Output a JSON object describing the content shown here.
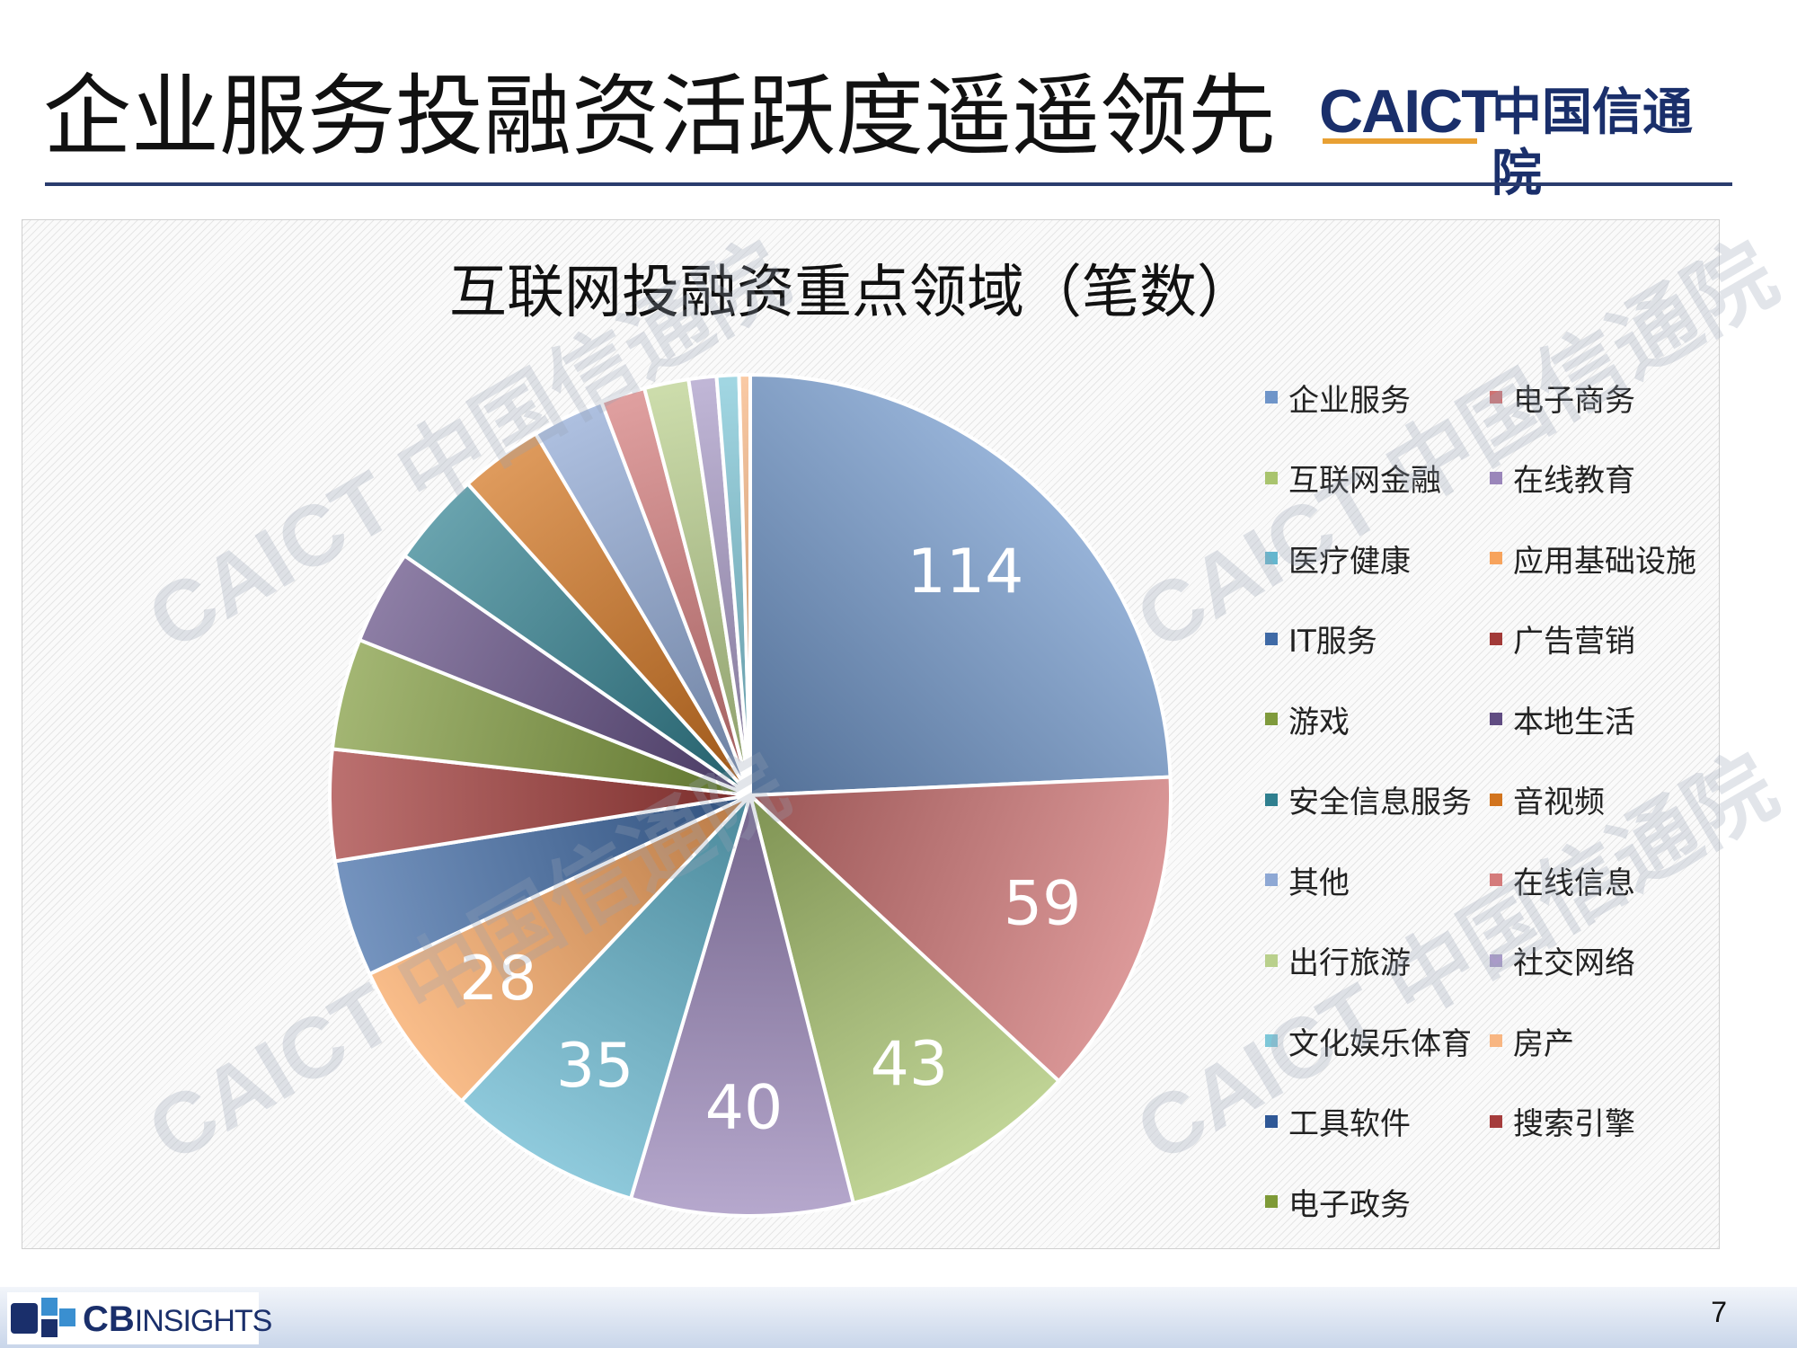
{
  "slide": {
    "title": "企业服务投融资活跃度遥遥领先",
    "logo_caict": "CAICT",
    "logo_cn": "中国信通院",
    "page_number": "7",
    "footer_logo_bold": "CB",
    "footer_logo_light": "INSIGHTS",
    "watermark_caict": "CAICT",
    "watermark_cn": "中国信通院"
  },
  "chart_data": {
    "type": "pie",
    "title": "互联网投融资重点领域（笔数）",
    "legend_position": "right",
    "categories": [
      "企业服务",
      "电子商务",
      "互联网金融",
      "在线教育",
      "医疗健康",
      "应用基础设施",
      "IT服务",
      "广告营销",
      "游戏",
      "本地生活",
      "安全信息服务",
      "音视频",
      "其他",
      "在线信息",
      "出行旅游",
      "社交网络",
      "文化娱乐体育",
      "房产",
      "工具软件",
      "搜索引擎",
      "电子政务"
    ],
    "values": [
      114,
      59,
      43,
      40,
      35,
      28,
      21,
      20,
      20,
      17,
      17,
      15,
      13,
      8,
      8,
      5,
      4,
      2,
      0,
      0,
      0
    ],
    "labeled_values": [
      true,
      true,
      true,
      true,
      true,
      true,
      false,
      false,
      false,
      false,
      false,
      false,
      false,
      false,
      false,
      false,
      false,
      false,
      false,
      false,
      false
    ],
    "colors": [
      "#6f95c9",
      "#cf7272",
      "#a9c46e",
      "#9a86ba",
      "#64b6ce",
      "#f7a35c",
      "#3f6aa6",
      "#a23a38",
      "#7f9a3c",
      "#604c82",
      "#2f7f8f",
      "#d2741e",
      "#8ea8d4",
      "#d47b7b",
      "#b9d08c",
      "#a99bc8",
      "#7ec7d8",
      "#f8b682",
      "#2f5896",
      "#a53c3c",
      "#7e9a37"
    ]
  }
}
